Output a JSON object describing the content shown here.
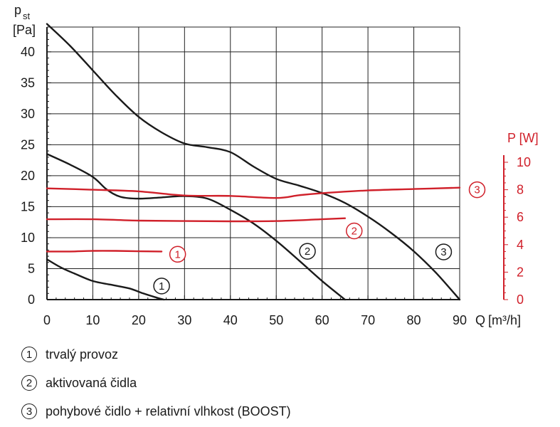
{
  "chart_data": {
    "type": "line",
    "xlabel": "Q",
    "xunit": "[m³/h]",
    "ylabel": "p",
    "ylabel_sub": "st",
    "yunit": "[Pa]",
    "y2label": "P [W]",
    "xlim": [
      0,
      90
    ],
    "ylim": [
      0,
      44
    ],
    "y2lim": [
      0,
      10
    ],
    "grid": true,
    "x_ticks": [
      0,
      10,
      20,
      30,
      40,
      50,
      60,
      70,
      80,
      90
    ],
    "y_ticks": [
      0,
      5,
      10,
      15,
      20,
      25,
      30,
      35,
      40
    ],
    "y2_ticks": [
      0,
      2,
      4,
      6,
      8,
      10
    ],
    "colors": {
      "pressure": "#1a1a1a",
      "power": "#d0202a",
      "grid": "#222222"
    },
    "pressure_series": [
      {
        "id": "1",
        "points": [
          [
            0,
            6.5
          ],
          [
            3,
            5.2
          ],
          [
            6,
            4.2
          ],
          [
            10,
            3.0
          ],
          [
            14,
            2.4
          ],
          [
            18,
            1.8
          ],
          [
            21,
            1.0
          ],
          [
            24,
            0.3
          ],
          [
            25.5,
            0
          ]
        ]
      },
      {
        "id": "2",
        "points": [
          [
            0,
            23.5
          ],
          [
            5,
            21.8
          ],
          [
            10,
            19.8
          ],
          [
            13,
            17.8
          ],
          [
            16,
            16.6
          ],
          [
            20,
            16.3
          ],
          [
            25,
            16.5
          ],
          [
            30,
            16.7
          ],
          [
            35,
            16.3
          ],
          [
            40,
            14.5
          ],
          [
            45,
            12.3
          ],
          [
            50,
            9.5
          ],
          [
            55,
            6.3
          ],
          [
            60,
            3.0
          ],
          [
            65,
            0
          ]
        ]
      },
      {
        "id": "3",
        "points": [
          [
            0,
            44.5
          ],
          [
            5,
            41.0
          ],
          [
            10,
            37.0
          ],
          [
            15,
            33.0
          ],
          [
            20,
            29.5
          ],
          [
            25,
            27.0
          ],
          [
            30,
            25.2
          ],
          [
            35,
            24.6
          ],
          [
            40,
            23.8
          ],
          [
            45,
            21.5
          ],
          [
            50,
            19.5
          ],
          [
            55,
            18.4
          ],
          [
            60,
            17.2
          ],
          [
            65,
            15.6
          ],
          [
            70,
            13.4
          ],
          [
            75,
            10.8
          ],
          [
            80,
            7.8
          ],
          [
            85,
            4.2
          ],
          [
            90,
            0
          ]
        ]
      }
    ],
    "power_series": [
      {
        "id": "1",
        "points": [
          [
            0,
            3.5
          ],
          [
            5,
            3.5
          ],
          [
            10,
            3.55
          ],
          [
            15,
            3.55
          ],
          [
            20,
            3.52
          ],
          [
            25,
            3.5
          ]
        ]
      },
      {
        "id": "2",
        "points": [
          [
            0,
            5.85
          ],
          [
            10,
            5.85
          ],
          [
            20,
            5.75
          ],
          [
            30,
            5.72
          ],
          [
            40,
            5.7
          ],
          [
            50,
            5.72
          ],
          [
            60,
            5.85
          ],
          [
            65,
            5.92
          ]
        ]
      },
      {
        "id": "3",
        "points": [
          [
            0,
            8.1
          ],
          [
            10,
            8.0
          ],
          [
            20,
            7.88
          ],
          [
            30,
            7.58
          ],
          [
            40,
            7.55
          ],
          [
            50,
            7.4
          ],
          [
            55,
            7.6
          ],
          [
            60,
            7.75
          ],
          [
            70,
            7.95
          ],
          [
            80,
            8.05
          ],
          [
            90,
            8.15
          ]
        ]
      }
    ],
    "curve_labels": [
      {
        "id": "1",
        "text": "1",
        "kind": "pressure",
        "x": 25,
        "y": 2.2
      },
      {
        "id": "2",
        "text": "2",
        "kind": "pressure",
        "x": 56.8,
        "y": 7.8
      },
      {
        "id": "3",
        "text": "3",
        "kind": "pressure",
        "x": 86.5,
        "y": 7.7
      },
      {
        "id": "1r",
        "text": "1",
        "kind": "power",
        "x": 28.5,
        "y": 3.3
      },
      {
        "id": "2r",
        "text": "2",
        "kind": "power",
        "x": 67,
        "y": 5.0
      },
      {
        "id": "3r",
        "text": "3",
        "kind": "power",
        "x": 93.8,
        "y": 8.0
      }
    ]
  },
  "legend": [
    {
      "number": "1",
      "label": "trvalý provoz"
    },
    {
      "number": "2",
      "label": "aktivovaná čidla"
    },
    {
      "number": "3",
      "label": "pohybové čidlo + relativní vlhkost (BOOST)"
    }
  ]
}
